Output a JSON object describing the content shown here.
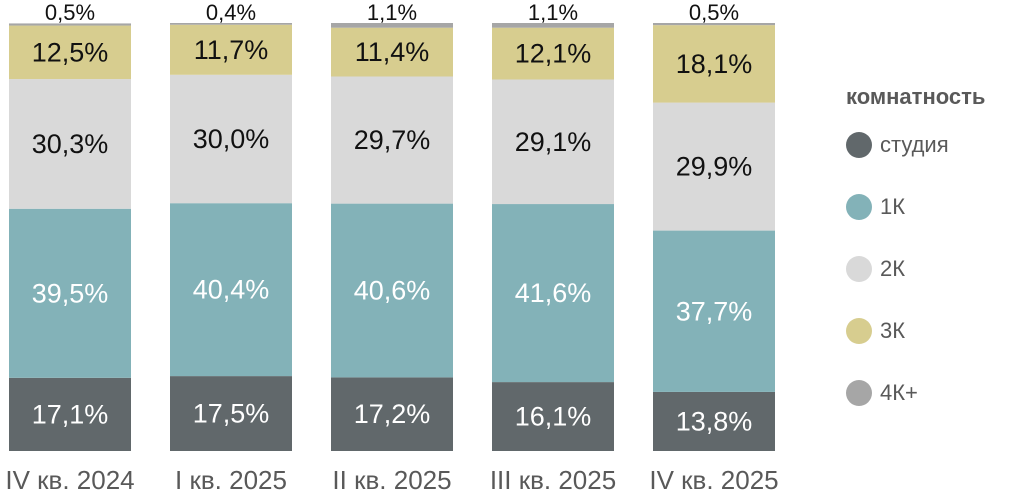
{
  "chart_data": {
    "type": "bar",
    "stacked": true,
    "categories": [
      "IV кв. 2024",
      "I кв. 2025",
      "II кв. 2025",
      "III кв. 2025",
      "IV кв. 2025"
    ],
    "series": [
      {
        "name": "студия",
        "color": "#61686b",
        "label_color": "#ffffff",
        "values": [
          17.1,
          17.5,
          17.2,
          16.1,
          13.8
        ]
      },
      {
        "name": "1К",
        "color": "#83b2b8",
        "label_color": "#ffffff",
        "values": [
          39.5,
          40.4,
          40.6,
          41.6,
          37.7
        ]
      },
      {
        "name": "2К",
        "color": "#d9d9d9",
        "label_color": "#111111",
        "values": [
          30.3,
          30.0,
          29.7,
          29.1,
          29.9
        ]
      },
      {
        "name": "3К",
        "color": "#d7cd8f",
        "label_color": "#111111",
        "values": [
          12.5,
          11.7,
          11.4,
          12.1,
          18.1
        ]
      },
      {
        "name": "4К+",
        "color": "#a6a6a6",
        "label_color": "#111111",
        "values": [
          0.5,
          0.4,
          1.1,
          1.1,
          0.5
        ]
      }
    ],
    "data_labels": [
      [
        "17,1%",
        "17,5%",
        "17,2%",
        "16,1%",
        "13,8%"
      ],
      [
        "39,5%",
        "40,4%",
        "40,6%",
        "41,6%",
        "37,7%"
      ],
      [
        "30,3%",
        "30,0%",
        "29,7%",
        "29,1%",
        "29,9%"
      ],
      [
        "12,5%",
        "11,7%",
        "11,4%",
        "12,1%",
        "18,1%"
      ],
      [
        "0,5%",
        "0,4%",
        "1,1%",
        "1,1%",
        "0,5%"
      ]
    ],
    "ylim": [
      0,
      100
    ],
    "grid": false,
    "legend": {
      "title": "комнатность",
      "position": "right"
    }
  }
}
